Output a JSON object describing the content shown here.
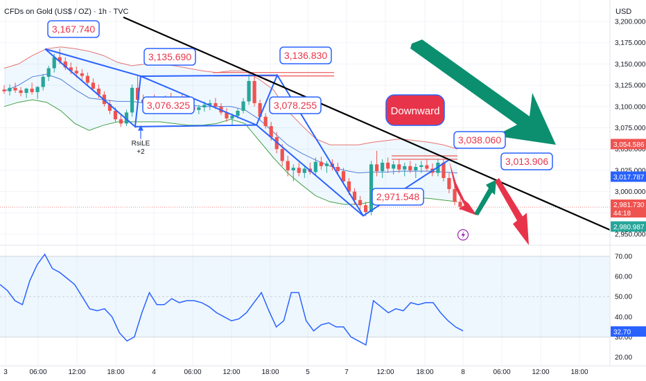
{
  "header": {
    "symbol": "CFDs on Gold (US$ / OZ) · 1h · TVC",
    "currency": "USD"
  },
  "colors": {
    "up": "#26a69a",
    "down": "#ef5350",
    "pattern": "#2962ff",
    "trend": "#000000",
    "bb_upper": "#e57373",
    "bb_basis": "#4f7fd8",
    "bb_lower": "#43a047",
    "rsi": "#2962ff",
    "arrow_up": "#0b8f6f",
    "arrow_down": "#e8344a"
  },
  "chart_data": [
    {
      "type": "candlestick",
      "title": "CFDs on Gold (US$ / OZ) · 1h · TVC",
      "x_ticks": [
        "3",
        "06:00",
        "12:00",
        "18:00",
        "4",
        "06:00",
        "12:00",
        "18:00",
        "5",
        "7",
        "12:00",
        "18:00",
        "8",
        "06:00",
        "12:00",
        "18:00"
      ],
      "y_ticks": [
        "3,200.000",
        "3,175.000",
        "3,150.000",
        "3,125.000",
        "3,100.000",
        "3,075.000",
        "3,050.000",
        "3,025.000",
        "3,000.000",
        "2,975.000",
        "2,950.000"
      ],
      "ylim": [
        2950,
        3200
      ],
      "price_labels": [
        {
          "value": 3054.586,
          "text": "3,054.586",
          "color": "#ef5350"
        },
        {
          "value": 3017.787,
          "text": "3,017.787",
          "color": "#2962ff"
        },
        {
          "value": 2981.73,
          "text": "2,981.730",
          "sub": "44:18",
          "color": "#ef5350"
        },
        {
          "value": 2980.987,
          "text": "2,980.987",
          "color": "#26a69a"
        }
      ],
      "annotations": [
        {
          "text": "3,167.740",
          "value": 3167.74
        },
        {
          "text": "3,135.690",
          "value": 3135.69
        },
        {
          "text": "3,136.830",
          "value": 3136.83
        },
        {
          "text": "3,076.325",
          "value": 3076.325
        },
        {
          "text": "3,078.255",
          "value": 3078.255
        },
        {
          "text": "2,971.548",
          "value": 2971.548
        },
        {
          "text": "3,038.060",
          "value": 3038.06
        },
        {
          "text": "3,013.906",
          "value": 3013.906
        }
      ],
      "callout": "Downward",
      "signal": {
        "label": "RsiLE",
        "count": "+2"
      },
      "candles": [
        [
          3120,
          3125,
          3115,
          3118
        ],
        [
          3118,
          3126,
          3113,
          3122
        ],
        [
          3122,
          3128,
          3116,
          3119
        ],
        [
          3119,
          3123,
          3112,
          3116
        ],
        [
          3116,
          3122,
          3110,
          3121
        ],
        [
          3121,
          3128,
          3114,
          3117
        ],
        [
          3117,
          3124,
          3109,
          3123
        ],
        [
          3123,
          3138,
          3119,
          3135
        ],
        [
          3135,
          3148,
          3130,
          3145
        ],
        [
          3145,
          3162,
          3140,
          3158
        ],
        [
          3158,
          3168,
          3150,
          3153
        ],
        [
          3153,
          3158,
          3143,
          3146
        ],
        [
          3146,
          3152,
          3138,
          3142
        ],
        [
          3142,
          3147,
          3134,
          3139
        ],
        [
          3139,
          3144,
          3130,
          3136
        ],
        [
          3136,
          3140,
          3124,
          3128
        ],
        [
          3128,
          3133,
          3118,
          3121
        ],
        [
          3121,
          3126,
          3110,
          3114
        ],
        [
          3114,
          3118,
          3100,
          3103
        ],
        [
          3103,
          3108,
          3091,
          3095
        ],
        [
          3095,
          3099,
          3082,
          3085
        ],
        [
          3085,
          3090,
          3076,
          3080
        ],
        [
          3080,
          3096,
          3077,
          3093
        ],
        [
          3093,
          3126,
          3088,
          3122
        ],
        [
          3122,
          3136,
          3105,
          3108
        ],
        [
          3108,
          3114,
          3100,
          3104
        ],
        [
          3104,
          3112,
          3098,
          3109
        ],
        [
          3109,
          3114,
          3102,
          3104
        ],
        [
          3104,
          3110,
          3098,
          3107
        ],
        [
          3107,
          3113,
          3100,
          3110
        ],
        [
          3110,
          3116,
          3104,
          3106
        ],
        [
          3106,
          3112,
          3099,
          3109
        ],
        [
          3109,
          3114,
          3102,
          3105
        ],
        [
          3105,
          3108,
          3096,
          3100
        ],
        [
          3100,
          3104,
          3093,
          3096
        ],
        [
          3096,
          3102,
          3091,
          3099
        ],
        [
          3099,
          3106,
          3094,
          3102
        ],
        [
          3102,
          3108,
          3096,
          3104
        ],
        [
          3104,
          3110,
          3097,
          3100
        ],
        [
          3100,
          3104,
          3090,
          3093
        ],
        [
          3093,
          3098,
          3082,
          3086
        ],
        [
          3086,
          3092,
          3078,
          3089
        ],
        [
          3089,
          3098,
          3086,
          3095
        ],
        [
          3095,
          3110,
          3092,
          3106
        ],
        [
          3106,
          3138,
          3102,
          3130
        ],
        [
          3130,
          3137,
          3100,
          3104
        ],
        [
          3104,
          3108,
          3085,
          3088
        ],
        [
          3088,
          3092,
          3074,
          3077
        ],
        [
          3077,
          3082,
          3060,
          3064
        ],
        [
          3064,
          3070,
          3045,
          3050
        ],
        [
          3050,
          3056,
          3030,
          3036
        ],
        [
          3036,
          3042,
          3018,
          3025
        ],
        [
          3025,
          3032,
          3012,
          3028
        ],
        [
          3028,
          3034,
          3018,
          3022
        ],
        [
          3022,
          3030,
          3016,
          3027
        ],
        [
          3027,
          3034,
          3020,
          3023
        ],
        [
          3023,
          3040,
          3019,
          3035
        ],
        [
          3035,
          3041,
          3026,
          3030
        ],
        [
          3030,
          3036,
          3022,
          3033
        ],
        [
          3033,
          3038,
          3025,
          3029
        ],
        [
          3029,
          3034,
          3020,
          3024
        ],
        [
          3024,
          3028,
          3008,
          3012
        ],
        [
          3012,
          3016,
          2996,
          3000
        ],
        [
          3000,
          3004,
          2985,
          2990
        ],
        [
          2990,
          2995,
          2978,
          2984
        ],
        [
          2984,
          2988,
          2971,
          2976
        ],
        [
          2976,
          3036,
          2972,
          3032
        ],
        [
          3032,
          3048,
          3018,
          3024
        ],
        [
          3024,
          3038,
          3016,
          3034
        ],
        [
          3034,
          3040,
          3022,
          3027
        ],
        [
          3027,
          3036,
          3020,
          3032
        ],
        [
          3032,
          3038,
          3022,
          3026
        ],
        [
          3026,
          3034,
          3018,
          3030
        ],
        [
          3030,
          3036,
          3022,
          3025
        ],
        [
          3025,
          3033,
          3016,
          3029
        ],
        [
          3029,
          3036,
          3022,
          3031
        ],
        [
          3031,
          3038,
          3024,
          3027
        ],
        [
          3027,
          3033,
          3018,
          3022
        ],
        [
          3022,
          3038,
          3018,
          3034
        ],
        [
          3034,
          3038,
          3012,
          3016
        ],
        [
          3016,
          3022,
          2998,
          3003
        ],
        [
          3003,
          3008,
          2984,
          2988
        ],
        [
          2988,
          2992,
          2978,
          2982
        ]
      ],
      "bollinger": {
        "upper": [
          3145,
          3150,
          3160,
          3168,
          3170,
          3168,
          3165,
          3160,
          3152,
          3148,
          3150,
          3150,
          3148,
          3145,
          3142,
          3140,
          3142,
          3142,
          3132,
          3120,
          3095,
          3078,
          3062,
          3055,
          3055,
          3055,
          3058,
          3060,
          3062,
          3060,
          3058,
          3055,
          3050
        ],
        "basis": [
          3118,
          3125,
          3135,
          3138,
          3132,
          3120,
          3110,
          3108,
          3106,
          3106,
          3104,
          3102,
          3102,
          3102,
          3100,
          3100,
          3100,
          3096,
          3085,
          3070,
          3055,
          3045,
          3037,
          3030,
          3025,
          3022,
          3023,
          3023,
          3024,
          3024,
          3024,
          3023,
          3022
        ],
        "lower": [
          3100,
          3105,
          3108,
          3105,
          3095,
          3080,
          3072,
          3078,
          3082,
          3082,
          3082,
          3082,
          3080,
          3078,
          3078,
          3080,
          3085,
          3080,
          3060,
          3040,
          3022,
          3008,
          2995,
          2988,
          2985,
          2985,
          2988,
          2990,
          2992,
          2993,
          2992,
          2990,
          2988
        ]
      }
    },
    {
      "type": "line",
      "title": "",
      "y_ticks": [
        "70.00",
        "60.00",
        "50.00",
        "40.00",
        "30.00",
        "20.00"
      ],
      "ylim": [
        17,
        73
      ],
      "bands": [
        30,
        50,
        70
      ],
      "current_value": "32.70",
      "series": [
        {
          "values": [
            56,
            53,
            48,
            46,
            58,
            66,
            71,
            64,
            62,
            59,
            56,
            50,
            44,
            43,
            44,
            40,
            32,
            28,
            30,
            42,
            52,
            46,
            46,
            49,
            47,
            48,
            48,
            47,
            45,
            42,
            40,
            38,
            39,
            42,
            47,
            52,
            43,
            35,
            38,
            52,
            52,
            38,
            33,
            36,
            37,
            35,
            35,
            30,
            28,
            26,
            48,
            45,
            42,
            44,
            43,
            47,
            46,
            47,
            47,
            42,
            38,
            35,
            33
          ]
        }
      ]
    }
  ]
}
